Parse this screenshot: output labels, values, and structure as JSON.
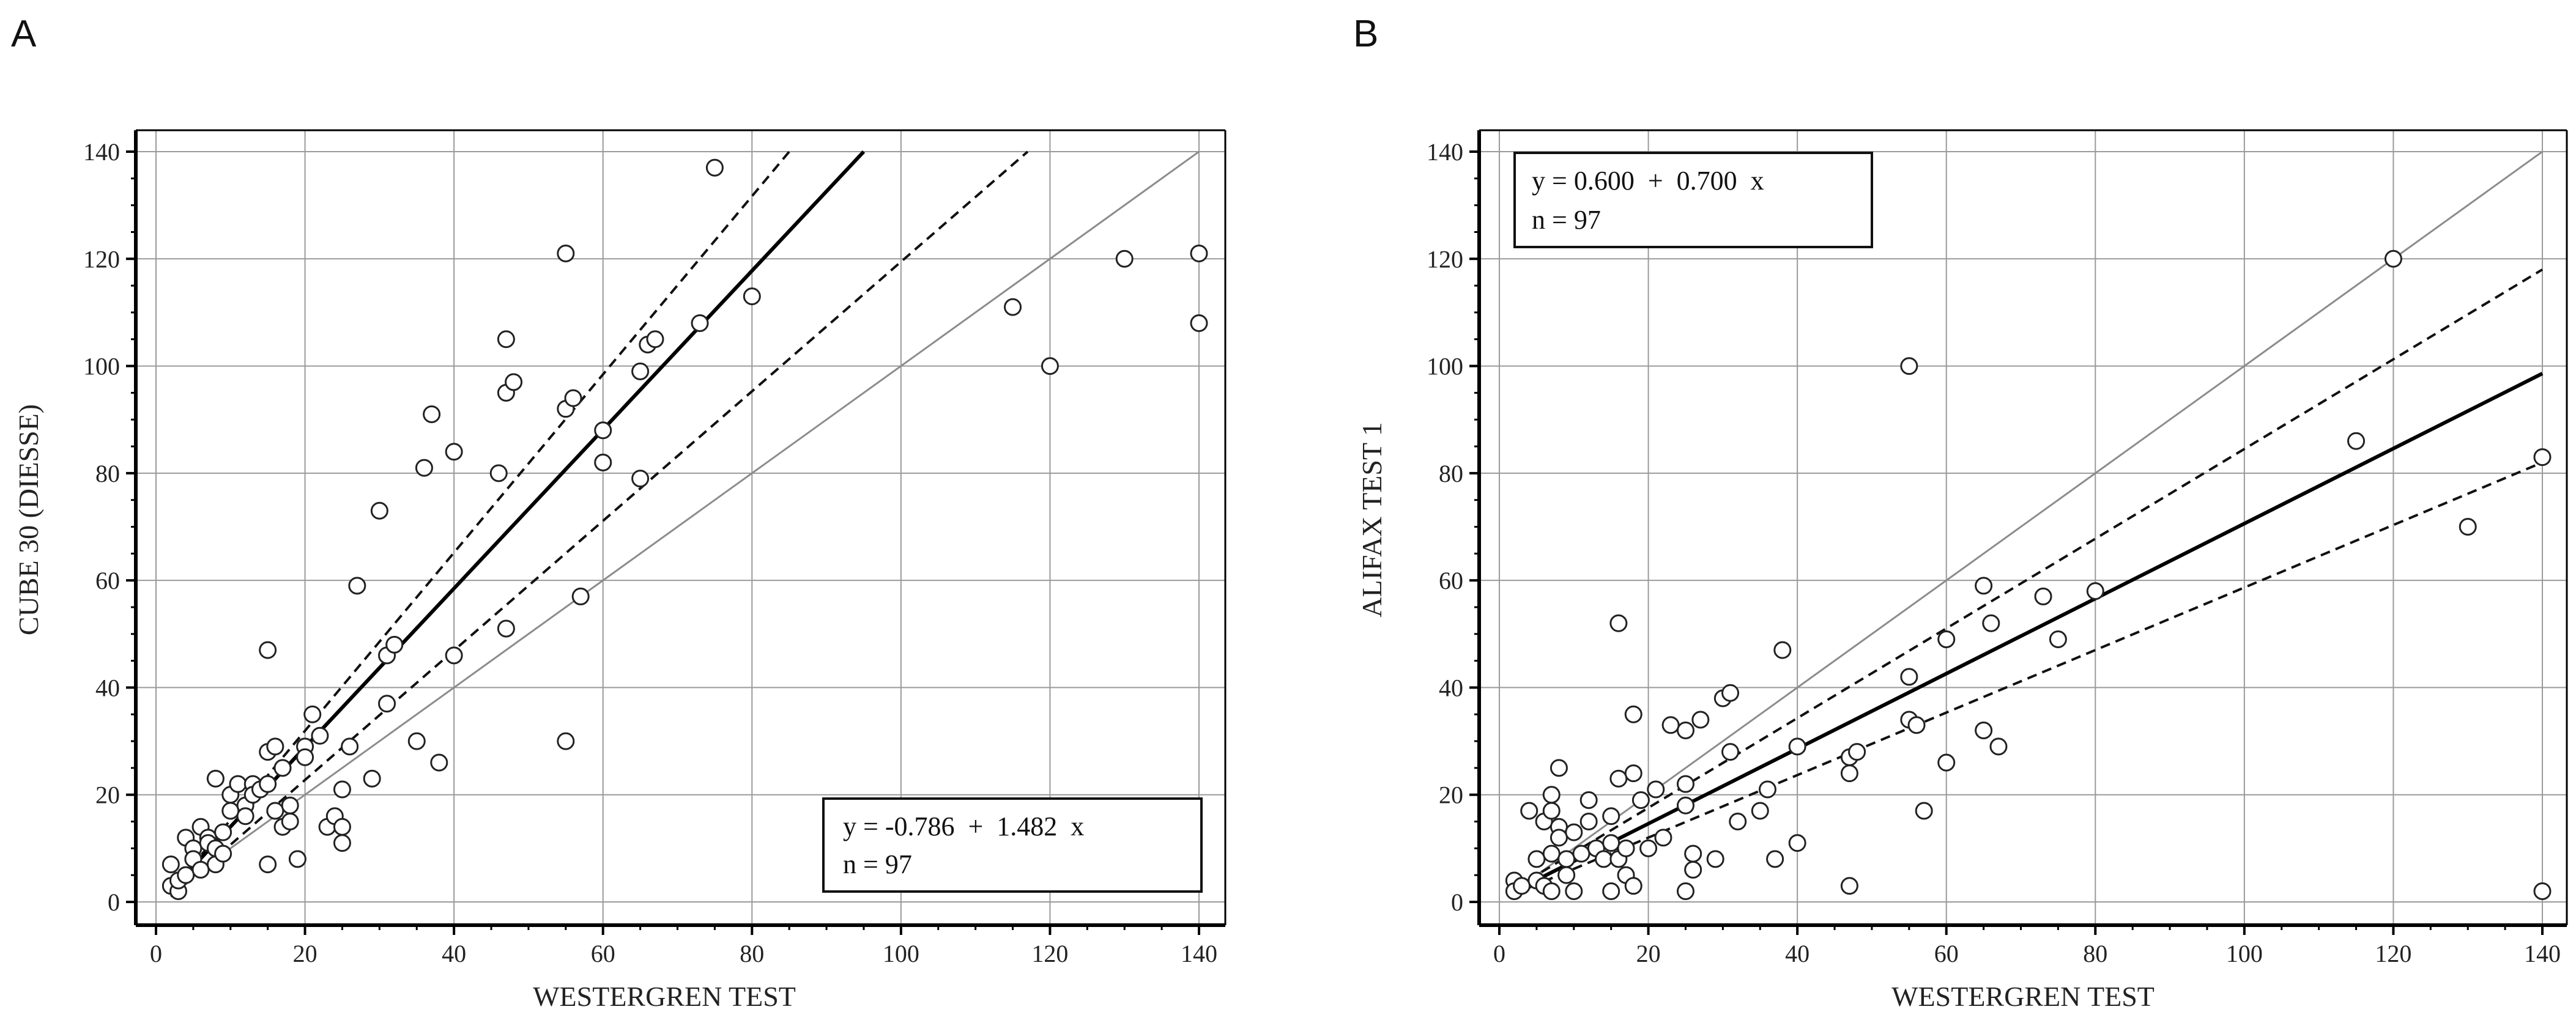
{
  "chart_data": [
    {
      "type": "scatter",
      "panel": "A",
      "xlabel": "WESTERGREN TEST",
      "ylabel": "CUBE 30 (DIESSE)",
      "xlim": [
        0,
        140
      ],
      "ylim": [
        0,
        140
      ],
      "x_ticks": [
        0,
        20,
        40,
        60,
        80,
        100,
        120,
        140
      ],
      "y_ticks": [
        0,
        20,
        40,
        60,
        80,
        100,
        120,
        140
      ],
      "grid": true,
      "equation": "y = -0.786  +  1.482  x",
      "n_label": "n = 97",
      "legend_position": "bottom-right",
      "regression": {
        "intercept": -0.786,
        "slope": 1.482
      },
      "ci_lower": [
        [
          2,
          1
        ],
        [
          117,
          140
        ]
      ],
      "ci_upper": [
        [
          2,
          2
        ],
        [
          85,
          140
        ]
      ],
      "identity_line": true,
      "points": [
        [
          2,
          7
        ],
        [
          2,
          3
        ],
        [
          3,
          2
        ],
        [
          3,
          4
        ],
        [
          4,
          12
        ],
        [
          4,
          5
        ],
        [
          5,
          10
        ],
        [
          5,
          8
        ],
        [
          6,
          14
        ],
        [
          6,
          6
        ],
        [
          7,
          12
        ],
        [
          7,
          11
        ],
        [
          8,
          23
        ],
        [
          8,
          10
        ],
        [
          8,
          7
        ],
        [
          9,
          9
        ],
        [
          9,
          13
        ],
        [
          10,
          20
        ],
        [
          10,
          17
        ],
        [
          11,
          22
        ],
        [
          12,
          18
        ],
        [
          12,
          16
        ],
        [
          13,
          22
        ],
        [
          13,
          20
        ],
        [
          14,
          21
        ],
        [
          15,
          47
        ],
        [
          15,
          28
        ],
        [
          15,
          7
        ],
        [
          15,
          22
        ],
        [
          16,
          29
        ],
        [
          16,
          17
        ],
        [
          17,
          14
        ],
        [
          17,
          25
        ],
        [
          18,
          18
        ],
        [
          18,
          15
        ],
        [
          19,
          8
        ],
        [
          20,
          29
        ],
        [
          20,
          27
        ],
        [
          21,
          35
        ],
        [
          22,
          31
        ],
        [
          23,
          14
        ],
        [
          24,
          16
        ],
        [
          25,
          21
        ],
        [
          25,
          14
        ],
        [
          25,
          11
        ],
        [
          26,
          29
        ],
        [
          27,
          59
        ],
        [
          29,
          23
        ],
        [
          30,
          73
        ],
        [
          31,
          37
        ],
        [
          31,
          46
        ],
        [
          32,
          48
        ],
        [
          35,
          30
        ],
        [
          36,
          81
        ],
        [
          37,
          91
        ],
        [
          38,
          26
        ],
        [
          40,
          46
        ],
        [
          40,
          84
        ],
        [
          46,
          80
        ],
        [
          47,
          105
        ],
        [
          47,
          95
        ],
        [
          47,
          51
        ],
        [
          48,
          97
        ],
        [
          55,
          121
        ],
        [
          55,
          92
        ],
        [
          55,
          30
        ],
        [
          56,
          94
        ],
        [
          57,
          57
        ],
        [
          60,
          88
        ],
        [
          60,
          82
        ],
        [
          65,
          99
        ],
        [
          65,
          79
        ],
        [
          66,
          104
        ],
        [
          67,
          105
        ],
        [
          73,
          108
        ],
        [
          75,
          137
        ],
        [
          80,
          113
        ],
        [
          115,
          111
        ],
        [
          120,
          100
        ],
        [
          130,
          120
        ],
        [
          140,
          121
        ],
        [
          140,
          108
        ]
      ]
    },
    {
      "type": "scatter",
      "panel": "B",
      "xlabel": "WESTERGREN TEST",
      "ylabel": "ALIFAX TEST 1",
      "xlim": [
        0,
        140
      ],
      "ylim": [
        0,
        140
      ],
      "x_ticks": [
        0,
        20,
        40,
        60,
        80,
        100,
        120,
        140
      ],
      "y_ticks": [
        0,
        20,
        40,
        60,
        80,
        100,
        120,
        140
      ],
      "grid": true,
      "equation": "y = 0.600  +  0.700  x",
      "n_label": "n = 97",
      "legend_position": "top-left",
      "regression": {
        "intercept": 0.6,
        "slope": 0.7
      },
      "ci_lower": [
        [
          2,
          1.5
        ],
        [
          140,
          82
        ]
      ],
      "ci_upper": [
        [
          2,
          2.5
        ],
        [
          140,
          118
        ]
      ],
      "identity_line": true,
      "points": [
        [
          2,
          4
        ],
        [
          2,
          2
        ],
        [
          3,
          3
        ],
        [
          4,
          17
        ],
        [
          5,
          8
        ],
        [
          5,
          4
        ],
        [
          6,
          15
        ],
        [
          6,
          3
        ],
        [
          7,
          20
        ],
        [
          7,
          17
        ],
        [
          7,
          9
        ],
        [
          7,
          2
        ],
        [
          8,
          25
        ],
        [
          8,
          14
        ],
        [
          8,
          12
        ],
        [
          9,
          8
        ],
        [
          9,
          5
        ],
        [
          10,
          13
        ],
        [
          10,
          2
        ],
        [
          11,
          9
        ],
        [
          12,
          19
        ],
        [
          12,
          15
        ],
        [
          13,
          10
        ],
        [
          14,
          8
        ],
        [
          15,
          16
        ],
        [
          15,
          11
        ],
        [
          15,
          2
        ],
        [
          16,
          52
        ],
        [
          16,
          23
        ],
        [
          16,
          8
        ],
        [
          17,
          10
        ],
        [
          17,
          5
        ],
        [
          18,
          35
        ],
        [
          18,
          24
        ],
        [
          18,
          3
        ],
        [
          19,
          19
        ],
        [
          20,
          10
        ],
        [
          21,
          21
        ],
        [
          22,
          12
        ],
        [
          23,
          33
        ],
        [
          25,
          32
        ],
        [
          25,
          22
        ],
        [
          25,
          18
        ],
        [
          25,
          2
        ],
        [
          26,
          9
        ],
        [
          26,
          6
        ],
        [
          27,
          34
        ],
        [
          29,
          8
        ],
        [
          30,
          38
        ],
        [
          31,
          39
        ],
        [
          31,
          28
        ],
        [
          32,
          15
        ],
        [
          35,
          17
        ],
        [
          36,
          21
        ],
        [
          37,
          8
        ],
        [
          38,
          47
        ],
        [
          40,
          29
        ],
        [
          40,
          11
        ],
        [
          47,
          27
        ],
        [
          47,
          24
        ],
        [
          47,
          3
        ],
        [
          48,
          28
        ],
        [
          55,
          100
        ],
        [
          55,
          42
        ],
        [
          55,
          34
        ],
        [
          56,
          33
        ],
        [
          57,
          17
        ],
        [
          60,
          49
        ],
        [
          60,
          26
        ],
        [
          65,
          59
        ],
        [
          65,
          32
        ],
        [
          66,
          52
        ],
        [
          67,
          29
        ],
        [
          73,
          57
        ],
        [
          75,
          49
        ],
        [
          80,
          58
        ],
        [
          115,
          86
        ],
        [
          120,
          120
        ],
        [
          130,
          70
        ],
        [
          140,
          83
        ],
        [
          140,
          2
        ]
      ]
    }
  ]
}
